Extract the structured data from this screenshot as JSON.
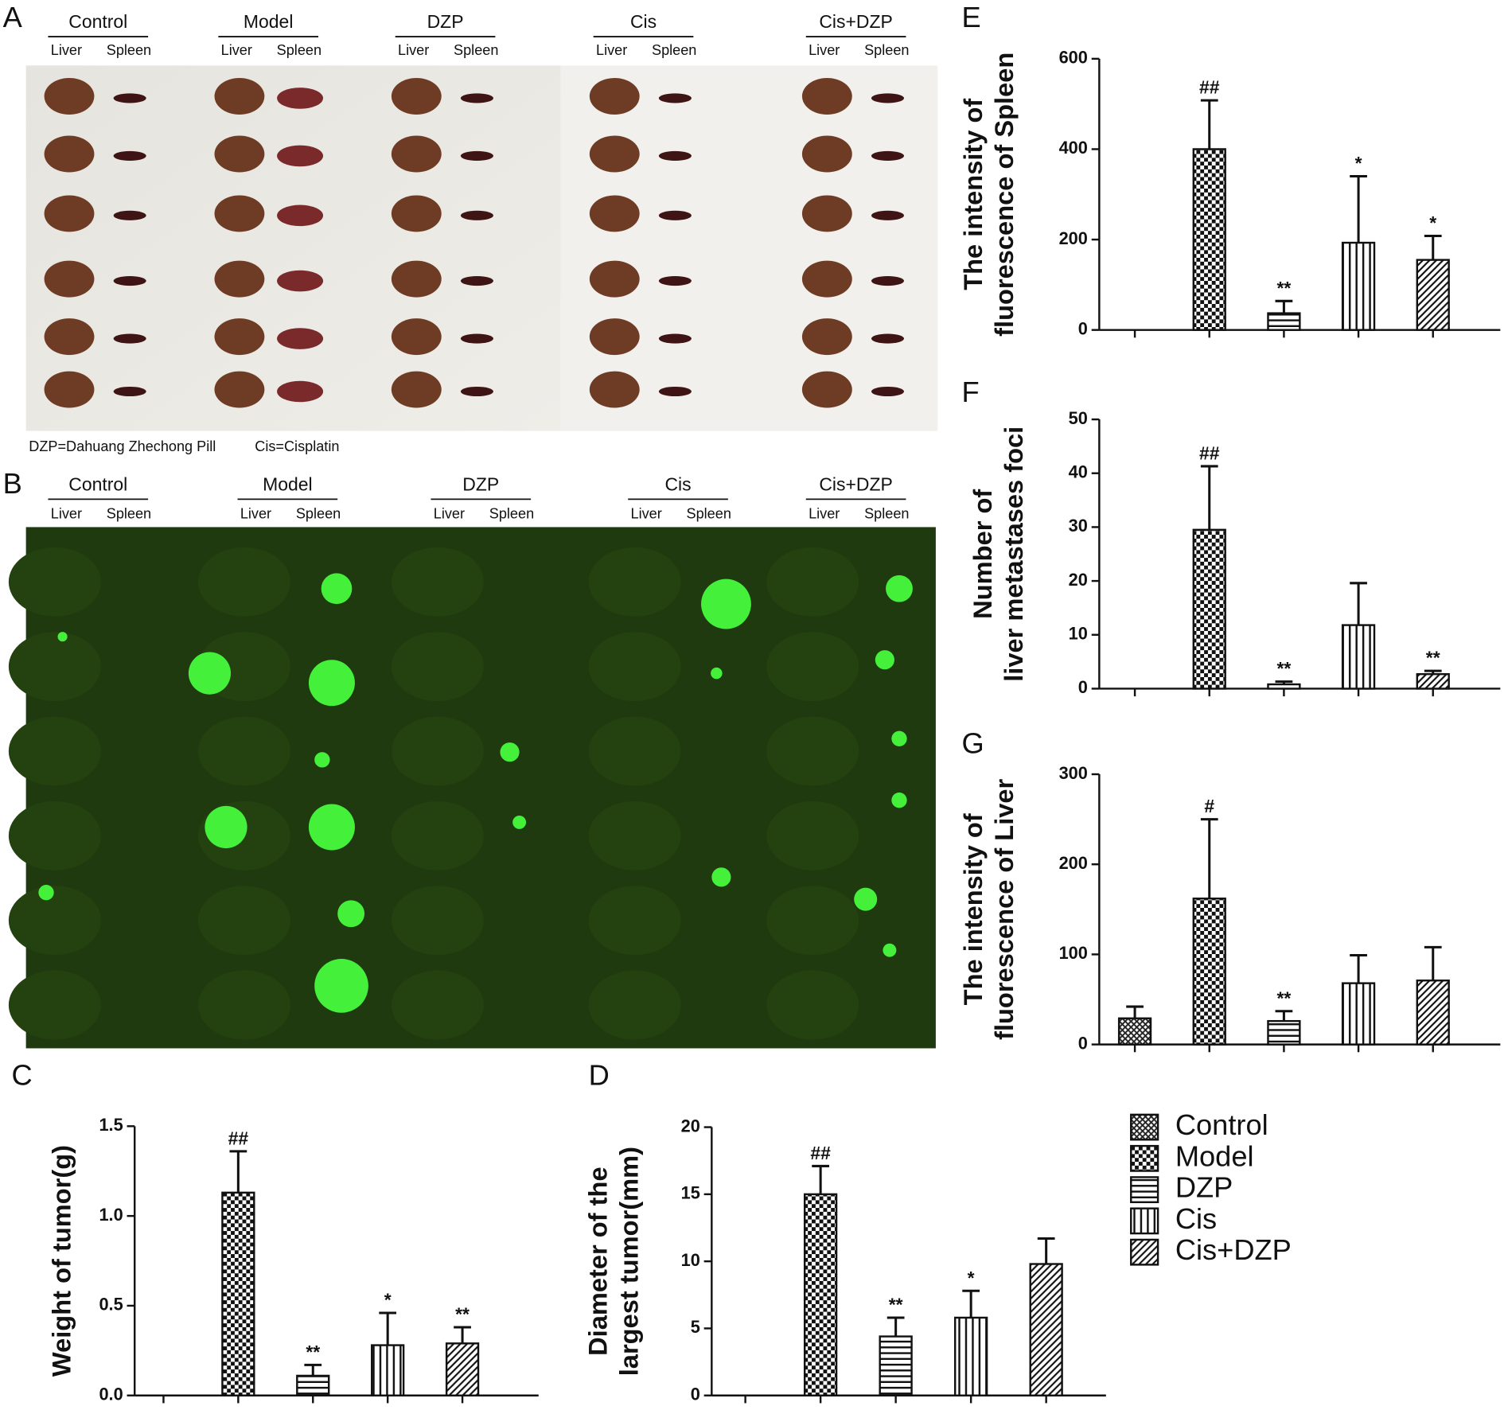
{
  "photo_panels": [
    {
      "label": "A",
      "groups": [
        "Control",
        "Model",
        "DZP",
        "Cis",
        "Cis+DZP"
      ],
      "sublabels": [
        "Liver",
        "Spleen"
      ],
      "notes": [
        "DZP=Dahuang Zhechong Pill",
        "Cis=Cisplatin"
      ]
    },
    {
      "label": "B",
      "groups": [
        "Control",
        "Model",
        "DZP",
        "Cis",
        "Cis+DZP"
      ],
      "sublabels": [
        "Liver",
        "Spleen"
      ]
    }
  ],
  "legend": {
    "items": [
      {
        "name": "Control",
        "pattern": "crosshatch"
      },
      {
        "name": "Model",
        "pattern": "checker"
      },
      {
        "name": "DZP",
        "pattern": "hlines"
      },
      {
        "name": "Cis",
        "pattern": "vlines"
      },
      {
        "name": "Cis+DZP",
        "pattern": "diagonal"
      }
    ]
  },
  "chart_data": [
    {
      "type": "bar",
      "panel": "C",
      "ylabel": [
        "Weight of tumor(g)"
      ],
      "categories": [
        null,
        null,
        null,
        null,
        null
      ],
      "values": [
        0,
        1.13,
        0.11,
        0.28,
        0.29
      ],
      "errors": [
        null,
        0.23,
        0.06,
        0.18,
        0.09
      ],
      "significance": [
        null,
        "##",
        "**",
        "*",
        "**"
      ],
      "ylim": [
        0,
        1.5
      ],
      "yticks": [
        {
          "value": 0,
          "label": "0.0"
        },
        0.5,
        {
          "value": 1,
          "label": "1.0"
        },
        1.5
      ]
    },
    {
      "type": "bar",
      "panel": "D",
      "ylabel": [
        "Diameter of the",
        "largest tumor(mm)"
      ],
      "categories": [
        null,
        null,
        null,
        null,
        null
      ],
      "values": [
        0,
        15,
        4.4,
        5.8,
        9.8
      ],
      "errors": [
        null,
        2.1,
        1.4,
        2.0,
        1.9
      ],
      "significance": [
        null,
        "##",
        "**",
        "*",
        null
      ],
      "ylim": [
        0,
        20
      ],
      "yticks": [
        0,
        5,
        10,
        15,
        20
      ]
    },
    {
      "type": "bar",
      "panel": "E",
      "ylabel": [
        "The intensity of",
        "fluorescence of Spleen"
      ],
      "categories": [
        null,
        null,
        null,
        null,
        null
      ],
      "values": [
        0,
        400,
        37,
        193,
        155
      ],
      "errors": [
        null,
        108,
        27,
        147,
        53
      ],
      "significance": [
        null,
        "##",
        "**",
        "*",
        "*"
      ],
      "ylim": [
        0,
        600
      ],
      "yticks": [
        0,
        200,
        400,
        600
      ]
    },
    {
      "type": "bar",
      "panel": "F",
      "ylabel": [
        "Number of",
        "liver metastases foci"
      ],
      "categories": [
        null,
        null,
        null,
        null,
        null
      ],
      "values": [
        0,
        29.5,
        0.8,
        11.8,
        2.7
      ],
      "errors": [
        null,
        11.8,
        0.5,
        7.8,
        0.6
      ],
      "significance": [
        null,
        "##",
        "**",
        null,
        "**"
      ],
      "ylim": [
        0,
        50
      ],
      "yticks": [
        0,
        10,
        20,
        30,
        40,
        50
      ]
    },
    {
      "type": "bar",
      "panel": "G",
      "ylabel": [
        "The intensity of",
        "fluorescence of Liver"
      ],
      "categories": [
        null,
        null,
        null,
        null,
        null
      ],
      "values": [
        29,
        162,
        26,
        68,
        71
      ],
      "errors": [
        13,
        88,
        11,
        31,
        37
      ],
      "significance": [
        null,
        "#",
        "**",
        null,
        null
      ],
      "ylim": [
        0,
        300
      ],
      "yticks": [
        0,
        100,
        200,
        300
      ]
    }
  ]
}
